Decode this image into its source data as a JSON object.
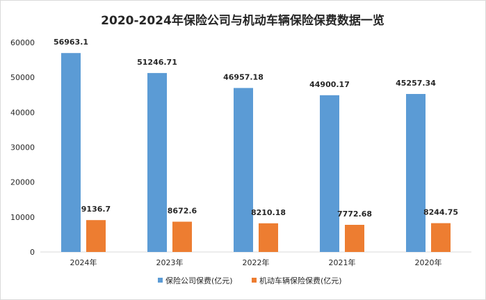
{
  "chart_data": {
    "type": "bar",
    "title": "2020-2024年保险公司与机动车辆保险保费数据一览",
    "categories": [
      "2024年",
      "2023年",
      "2022年",
      "2021年",
      "2020年"
    ],
    "series": [
      {
        "name": "保险公司保费(亿元)",
        "color": "#5b9bd5",
        "values": [
          56963.1,
          51246.71,
          46957.18,
          44900.17,
          45257.34
        ],
        "labels": [
          "56963.1",
          "51246.71",
          "46957.18",
          "44900.17",
          "45257.34"
        ]
      },
      {
        "name": "机动车辆保险保费(亿元)",
        "color": "#ed7d31",
        "values": [
          9136.7,
          8672.6,
          8210.18,
          7772.68,
          8244.75
        ],
        "labels": [
          "9136.7",
          "8672.6",
          "8210.18",
          "7772.68",
          "8244.75"
        ]
      }
    ],
    "ylim": [
      0,
      60000
    ],
    "yticks": [
      "0",
      "10000",
      "20000",
      "30000",
      "40000",
      "50000",
      "60000"
    ],
    "grid": false,
    "legend_position": "bottom",
    "xlabel": "",
    "ylabel": ""
  }
}
